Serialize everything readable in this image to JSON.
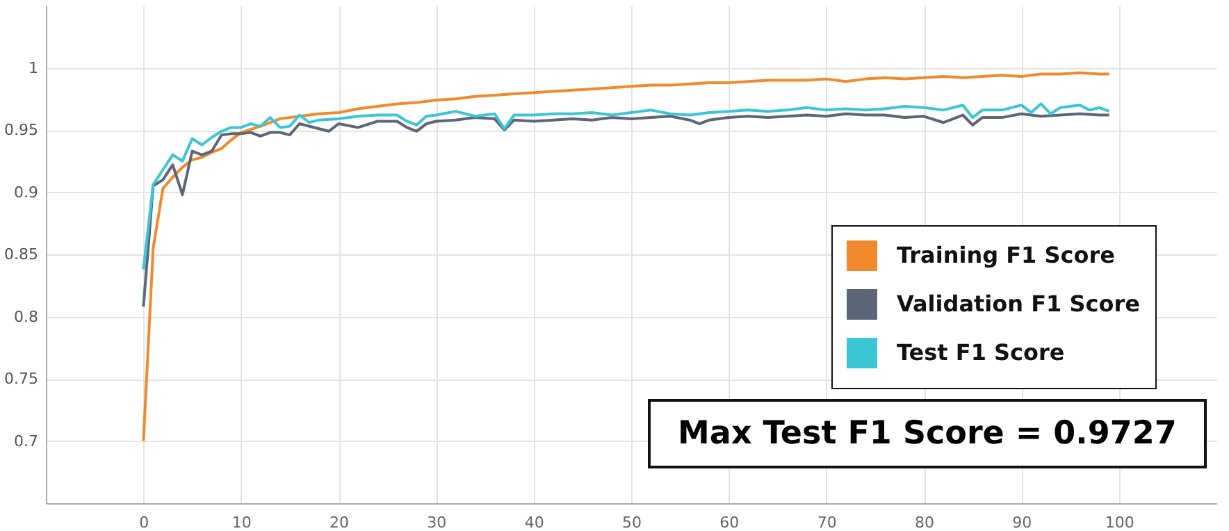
{
  "chart_data": {
    "type": "line",
    "xlim": [
      -10,
      110
    ],
    "xticks": [
      0,
      10,
      20,
      30,
      40,
      50,
      60,
      70,
      80,
      90,
      100
    ],
    "ylim": [
      0.65,
      1.05
    ],
    "yticks": [
      0.7,
      0.75,
      0.8,
      0.85,
      0.9,
      0.95,
      1
    ],
    "grid": true,
    "legend": "bottom right",
    "line_style": "solid",
    "annotations": [
      "Max Test F1 Score = 0.9727"
    ],
    "series": [
      {
        "name": "Training F1 Score",
        "color": "#f08a2c",
        "x": [
          0,
          1,
          2,
          3,
          4,
          5,
          6,
          7,
          8,
          9,
          10,
          12,
          14,
          16,
          18,
          20,
          22,
          24,
          26,
          28,
          30,
          32,
          34,
          36,
          38,
          40,
          42,
          44,
          46,
          48,
          50,
          52,
          54,
          56,
          58,
          60,
          62,
          64,
          66,
          68,
          70,
          72,
          74,
          76,
          78,
          80,
          82,
          84,
          86,
          88,
          90,
          92,
          94,
          96,
          98,
          99
        ],
        "values": [
          0.7,
          0.855,
          0.903,
          0.912,
          0.92,
          0.926,
          0.928,
          0.932,
          0.935,
          0.942,
          0.948,
          0.953,
          0.959,
          0.961,
          0.963,
          0.964,
          0.967,
          0.969,
          0.971,
          0.972,
          0.974,
          0.975,
          0.977,
          0.978,
          0.979,
          0.98,
          0.981,
          0.982,
          0.983,
          0.984,
          0.985,
          0.986,
          0.986,
          0.987,
          0.988,
          0.988,
          0.989,
          0.99,
          0.99,
          0.99,
          0.991,
          0.989,
          0.991,
          0.992,
          0.991,
          0.992,
          0.993,
          0.992,
          0.993,
          0.994,
          0.993,
          0.995,
          0.995,
          0.996,
          0.995,
          0.995
        ]
      },
      {
        "name": "Validation F1 Score",
        "color": "#5d6678",
        "x": [
          0,
          1,
          2,
          3,
          4,
          5,
          6,
          7,
          8,
          9,
          10,
          11,
          12,
          13,
          14,
          15,
          16,
          18,
          19,
          20,
          22,
          24,
          26,
          27,
          28,
          29,
          30,
          32,
          34,
          36,
          37,
          38,
          40,
          42,
          44,
          46,
          48,
          50,
          52,
          54,
          56,
          57,
          58,
          60,
          62,
          64,
          66,
          68,
          70,
          72,
          74,
          76,
          78,
          80,
          82,
          84,
          85,
          86,
          88,
          90,
          92,
          94,
          96,
          98,
          99
        ],
        "values": [
          0.808,
          0.905,
          0.91,
          0.922,
          0.898,
          0.933,
          0.93,
          0.933,
          0.946,
          0.947,
          0.947,
          0.948,
          0.945,
          0.948,
          0.948,
          0.946,
          0.955,
          0.951,
          0.949,
          0.955,
          0.952,
          0.957,
          0.957,
          0.952,
          0.949,
          0.955,
          0.957,
          0.958,
          0.96,
          0.959,
          0.95,
          0.958,
          0.957,
          0.958,
          0.959,
          0.958,
          0.96,
          0.959,
          0.96,
          0.961,
          0.958,
          0.955,
          0.958,
          0.96,
          0.961,
          0.96,
          0.961,
          0.962,
          0.961,
          0.963,
          0.962,
          0.962,
          0.96,
          0.961,
          0.956,
          0.962,
          0.954,
          0.96,
          0.96,
          0.963,
          0.961,
          0.962,
          0.963,
          0.962,
          0.962
        ]
      },
      {
        "name": "Test F1 Score",
        "color": "#3cc6d4",
        "x": [
          0,
          1,
          2,
          3,
          4,
          5,
          6,
          7,
          8,
          9,
          10,
          11,
          12,
          13,
          14,
          15,
          16,
          17,
          18,
          20,
          22,
          24,
          26,
          27,
          28,
          29,
          30,
          32,
          34,
          36,
          37,
          38,
          40,
          42,
          44,
          46,
          48,
          50,
          52,
          54,
          56,
          58,
          60,
          62,
          64,
          66,
          68,
          70,
          72,
          74,
          76,
          78,
          80,
          82,
          84,
          85,
          86,
          88,
          90,
          91,
          92,
          93,
          94,
          96,
          97,
          98,
          99
        ],
        "values": [
          0.838,
          0.906,
          0.918,
          0.93,
          0.925,
          0.943,
          0.938,
          0.944,
          0.949,
          0.952,
          0.952,
          0.955,
          0.953,
          0.96,
          0.952,
          0.953,
          0.962,
          0.956,
          0.958,
          0.959,
          0.961,
          0.962,
          0.962,
          0.957,
          0.954,
          0.961,
          0.962,
          0.965,
          0.961,
          0.963,
          0.951,
          0.962,
          0.962,
          0.963,
          0.963,
          0.964,
          0.962,
          0.964,
          0.966,
          0.963,
          0.962,
          0.964,
          0.965,
          0.966,
          0.965,
          0.966,
          0.968,
          0.966,
          0.967,
          0.966,
          0.967,
          0.969,
          0.968,
          0.966,
          0.97,
          0.96,
          0.966,
          0.966,
          0.97,
          0.964,
          0.971,
          0.963,
          0.968,
          0.97,
          0.966,
          0.968,
          0.965
        ]
      }
    ]
  }
}
